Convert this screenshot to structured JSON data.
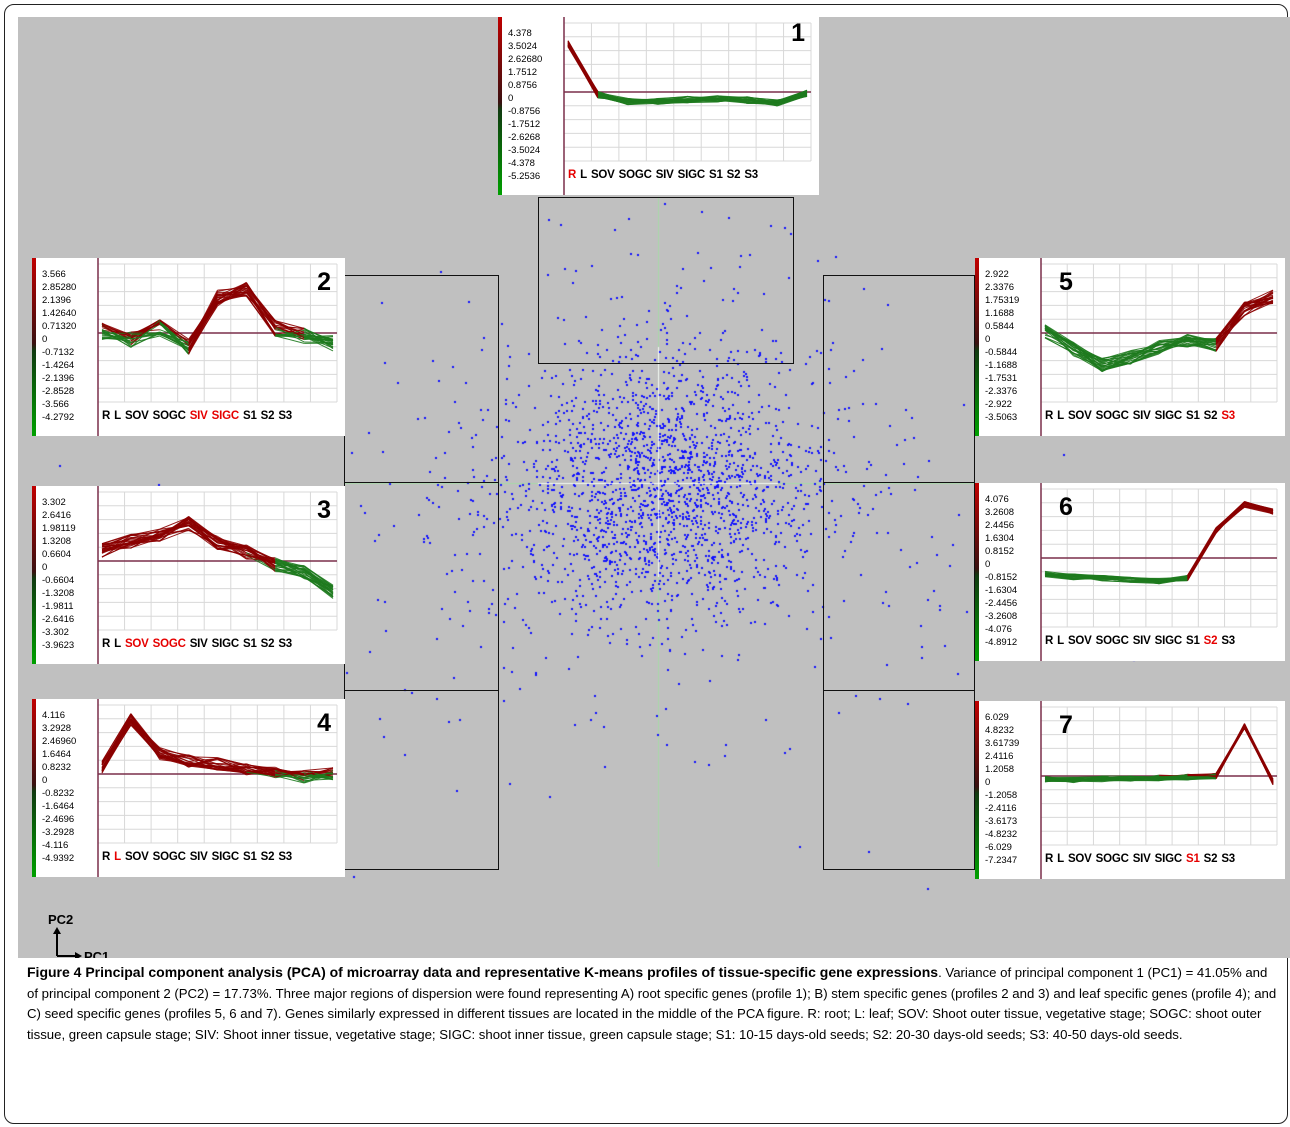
{
  "figure": {
    "axis_pc1": "PC1",
    "axis_pc2": "PC2",
    "caption_title": "Figure 4 Principal component analysis (PCA) of microarray data and representative K-means profiles of tissue-specific gene expressions",
    "caption_body": ". Variance of principal component 1 (PC1) = 41.05% and of principal component 2 (PC2) = 17.73%. Three major regions of dispersion were found representing A) root specific genes (profile 1); B) stem specific genes (profiles 2 and 3) and leaf specific genes (profile 4); and C) seed specific genes (profiles 5, 6 and 7). Genes similarly expressed in different tissues are located in the middle of the PCA figure. R: root; L: leaf; SOV: Shoot outer tissue, vegetative stage; SOGC: shoot outer tissue, green capsule stage; SIV: Shoot inner tissue, vegetative stage; SIGC: shoot inner tissue, green capsule stage; S1: 10-15 days-old seeds; S2: 20-30 days-old seeds; S3: 40-50 days-old seeds."
  },
  "tissues": [
    "R",
    "L",
    "SOV",
    "SOGC",
    "SIV",
    "SIGC",
    "S1",
    "S2",
    "S3"
  ],
  "colors": {
    "background": "#c0c0c0",
    "points": "#1010ff",
    "high": "#8b0000",
    "low": "#1e7a1e",
    "highlight": "#e60000",
    "zero_line": "#7a2f4a"
  },
  "profiles": [
    {
      "number": "1",
      "y_labels": [
        "4.378",
        "3.5024",
        "2.62680",
        "1.7512",
        "0.8756",
        "0",
        "-0.8756",
        "-1.7512",
        "-2.6268",
        "-3.5024",
        "-4.378",
        "-5.2536"
      ],
      "highlight": [
        0
      ],
      "pattern": [
        3.6,
        -0.2,
        -0.7,
        -0.7,
        -0.55,
        -0.5,
        -0.6,
        -0.8,
        -0.1
      ],
      "spread": 0.25
    },
    {
      "number": "2",
      "y_labels": [
        "3.566",
        "2.85280",
        "2.1396",
        "1.42640",
        "0.71320",
        "0",
        "-0.7132",
        "-1.4264",
        "-2.1396",
        "-2.8528",
        "-3.566",
        "-4.2792"
      ],
      "highlight": [
        4,
        5
      ],
      "pattern": [
        0.1,
        -0.4,
        0.3,
        -0.8,
        2.1,
        2.6,
        0.3,
        -0.2,
        -0.6
      ],
      "spread": 0.5
    },
    {
      "number": "3",
      "y_labels": [
        "3.302",
        "2.6416",
        "1.98119",
        "1.3208",
        "0.6604",
        "0",
        "-0.6604",
        "-1.3208",
        "-1.9811",
        "-2.6416",
        "-3.302",
        "-3.9623"
      ],
      "highlight": [
        2,
        3
      ],
      "pattern": [
        0.6,
        1.1,
        1.5,
        2.1,
        1.0,
        0.5,
        -0.2,
        -0.6,
        -1.7
      ],
      "spread": 0.4
    },
    {
      "number": "4",
      "y_labels": [
        "4.116",
        "3.2928",
        "2.46960",
        "1.6464",
        "0.8232",
        "0",
        "-0.8232",
        "-1.6464",
        "-2.4696",
        "-3.2928",
        "-4.116",
        "-4.9392"
      ],
      "highlight": [
        1
      ],
      "pattern": [
        0.5,
        3.8,
        1.4,
        0.9,
        0.7,
        0.3,
        0.1,
        -0.2,
        0.0
      ],
      "spread": 0.45
    },
    {
      "number": "5",
      "y_labels": [
        "2.922",
        "2.3376",
        "1.75319",
        "1.1688",
        "0.5844",
        "0",
        "-0.5844",
        "-1.1688",
        "-1.7531",
        "-2.3376",
        "-2.922",
        "-3.5063"
      ],
      "highlight": [
        8
      ],
      "pattern": [
        0.1,
        -0.8,
        -1.6,
        -1.2,
        -0.7,
        -0.4,
        -0.6,
        1.2,
        1.8
      ],
      "spread": 0.35
    },
    {
      "number": "6",
      "y_labels": [
        "4.076",
        "3.2608",
        "2.4456",
        "1.6304",
        "0.8152",
        "0",
        "-0.8152",
        "-1.6304",
        "-2.4456",
        "-3.2608",
        "-4.076",
        "-4.8912"
      ],
      "highlight": [
        7
      ],
      "pattern": [
        -1.1,
        -1.3,
        -1.4,
        -1.5,
        -1.6,
        -1.4,
        1.9,
        3.7,
        3.2
      ],
      "spread": 0.2
    },
    {
      "number": "7",
      "y_labels": [
        "6.029",
        "4.8232",
        "3.61739",
        "2.4116",
        "1.2058",
        "0",
        "-1.2058",
        "-2.4116",
        "-3.6173",
        "-4.8232",
        "-6.029",
        "-7.2347"
      ],
      "highlight": [
        6
      ],
      "pattern": [
        -0.3,
        -0.4,
        -0.3,
        -0.3,
        -0.2,
        -0.1,
        0.0,
        5.1,
        -0.6
      ],
      "spread": 0.3
    }
  ]
}
